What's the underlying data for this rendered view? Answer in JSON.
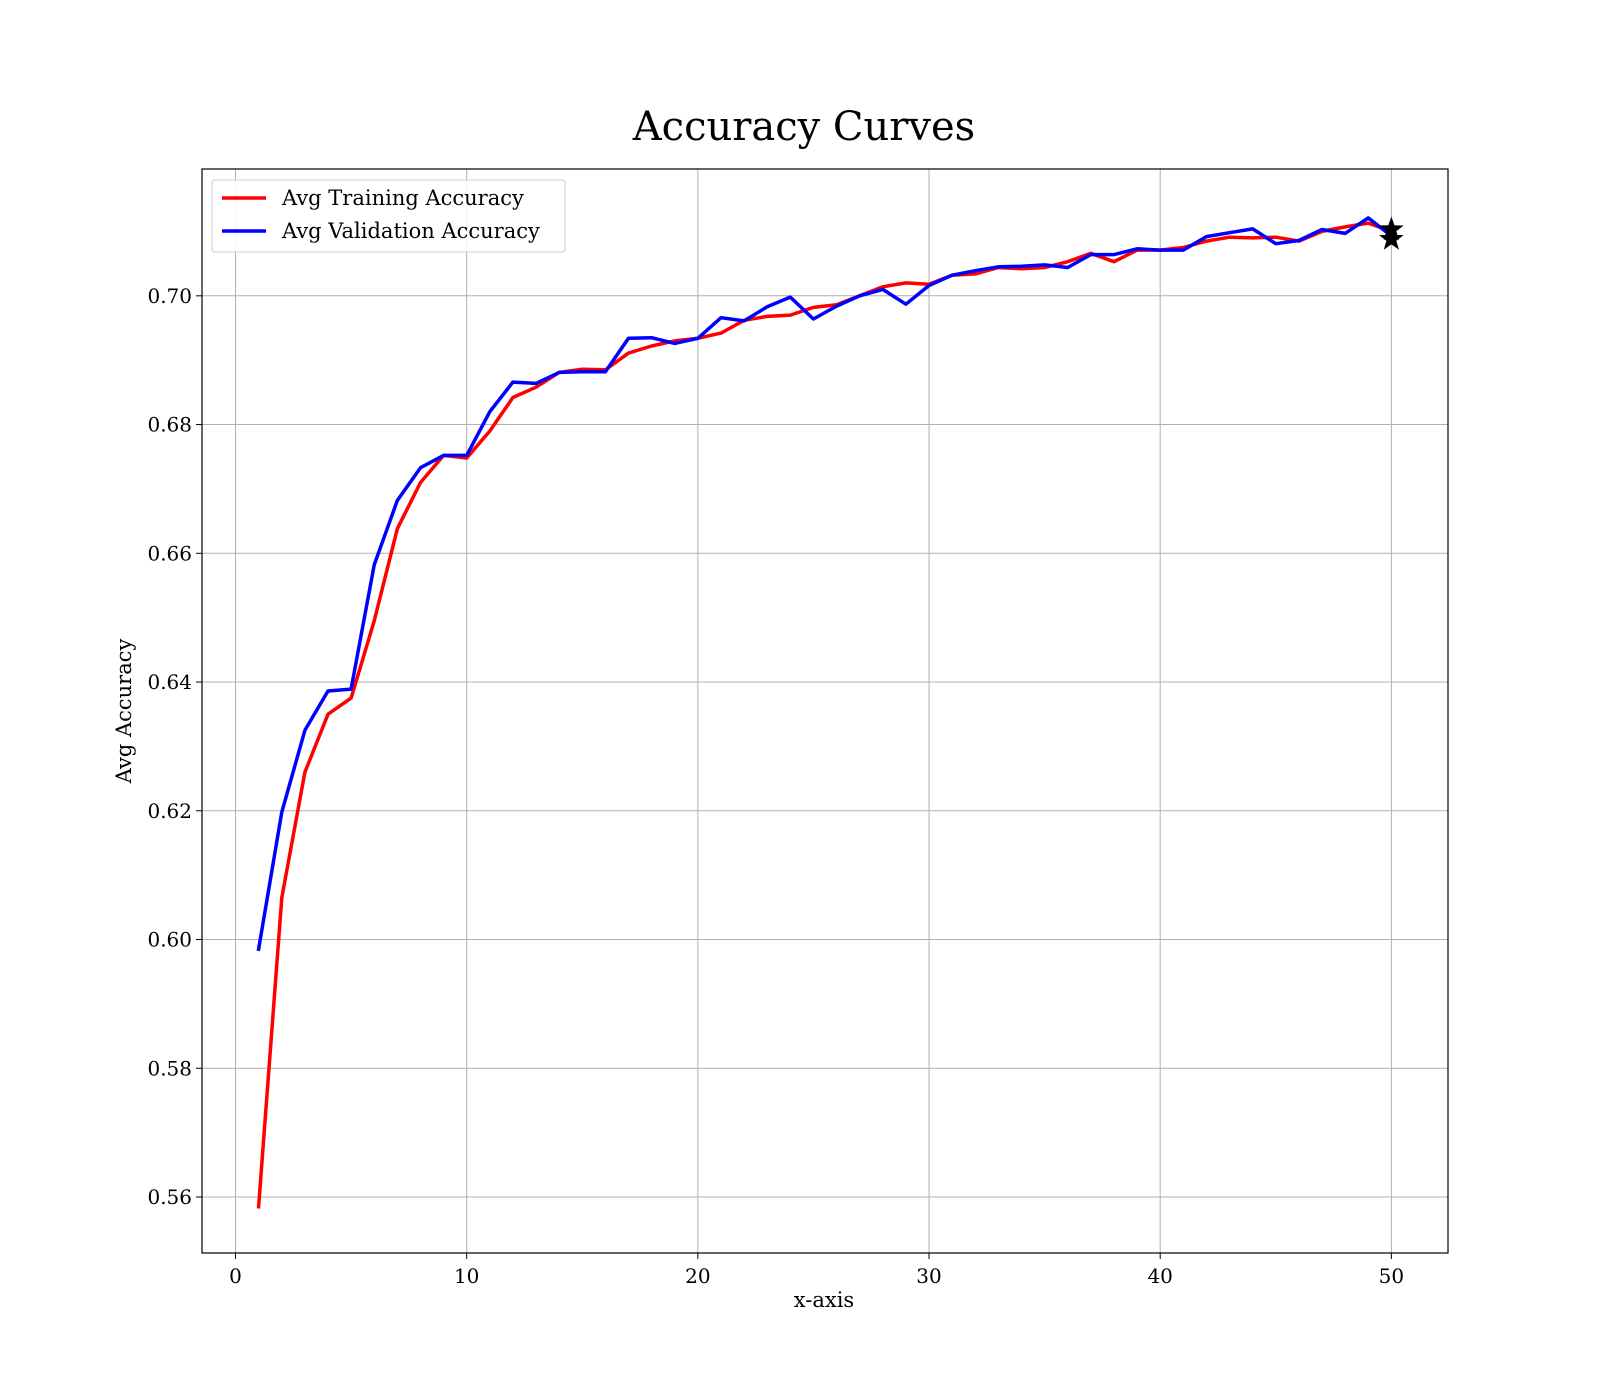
{
  "chart_data": {
    "type": "line",
    "title": "Accuracy Curves",
    "xlabel": "x-axis",
    "ylabel": "Avg Accuracy",
    "xlim": [
      -1.45,
      52.45
    ],
    "ylim": [
      0.5513,
      0.7197
    ],
    "x_ticks": [
      0,
      10,
      20,
      30,
      40,
      50
    ],
    "y_ticks": [
      0.56,
      0.58,
      0.6,
      0.62,
      0.64,
      0.66,
      0.68,
      0.7
    ],
    "y_tick_labels": [
      "0.56",
      "0.58",
      "0.60",
      "0.62",
      "0.64",
      "0.66",
      "0.68",
      "0.70"
    ],
    "grid": true,
    "legend_position": "upper-left",
    "x": [
      1,
      2,
      3,
      4,
      5,
      6,
      7,
      8,
      9,
      10,
      11,
      12,
      13,
      14,
      15,
      16,
      17,
      18,
      19,
      20,
      21,
      22,
      23,
      24,
      25,
      26,
      27,
      28,
      29,
      30,
      31,
      32,
      33,
      34,
      35,
      36,
      37,
      38,
      39,
      40,
      41,
      42,
      43,
      44,
      45,
      46,
      47,
      48,
      49,
      50
    ],
    "series": [
      {
        "name": "Avg Training Accuracy",
        "color": "#ff0000",
        "values": [
          0.5585,
          0.6065,
          0.626,
          0.635,
          0.6375,
          0.6495,
          0.6638,
          0.671,
          0.6752,
          0.6748,
          0.679,
          0.6842,
          0.6858,
          0.6881,
          0.6886,
          0.6885,
          0.6911,
          0.6922,
          0.693,
          0.6934,
          0.6942,
          0.6962,
          0.6968,
          0.697,
          0.6982,
          0.6986,
          0.7,
          0.7014,
          0.702,
          0.7018,
          0.7032,
          0.7034,
          0.7044,
          0.7042,
          0.7044,
          0.7053,
          0.7066,
          0.7053,
          0.7071,
          0.7071,
          0.7075,
          0.7085,
          0.7091,
          0.709,
          0.7091,
          0.7085,
          0.71,
          0.7107,
          0.7113,
          0.71
        ]
      },
      {
        "name": "Avg Validation Accuracy",
        "color": "#0000ff",
        "values": [
          0.5985,
          0.6198,
          0.6325,
          0.6386,
          0.6389,
          0.6582,
          0.6682,
          0.6733,
          0.6752,
          0.6752,
          0.682,
          0.6866,
          0.6864,
          0.6881,
          0.6882,
          0.6882,
          0.6934,
          0.6935,
          0.6926,
          0.6934,
          0.6966,
          0.6961,
          0.6983,
          0.6998,
          0.6964,
          0.6984,
          0.7,
          0.701,
          0.6987,
          0.7016,
          0.7032,
          0.7039,
          0.7045,
          0.7046,
          0.7048,
          0.7044,
          0.7064,
          0.7064,
          0.7073,
          0.7071,
          0.7071,
          0.7092,
          0.7098,
          0.7104,
          0.7081,
          0.7086,
          0.7103,
          0.7097,
          0.7121,
          0.7093
        ]
      }
    ],
    "markers": [
      {
        "x": 50,
        "y": 0.7103,
        "shape": "star",
        "color": "#000000"
      },
      {
        "x": 50,
        "y": 0.7088,
        "shape": "star",
        "color": "#000000"
      }
    ]
  }
}
